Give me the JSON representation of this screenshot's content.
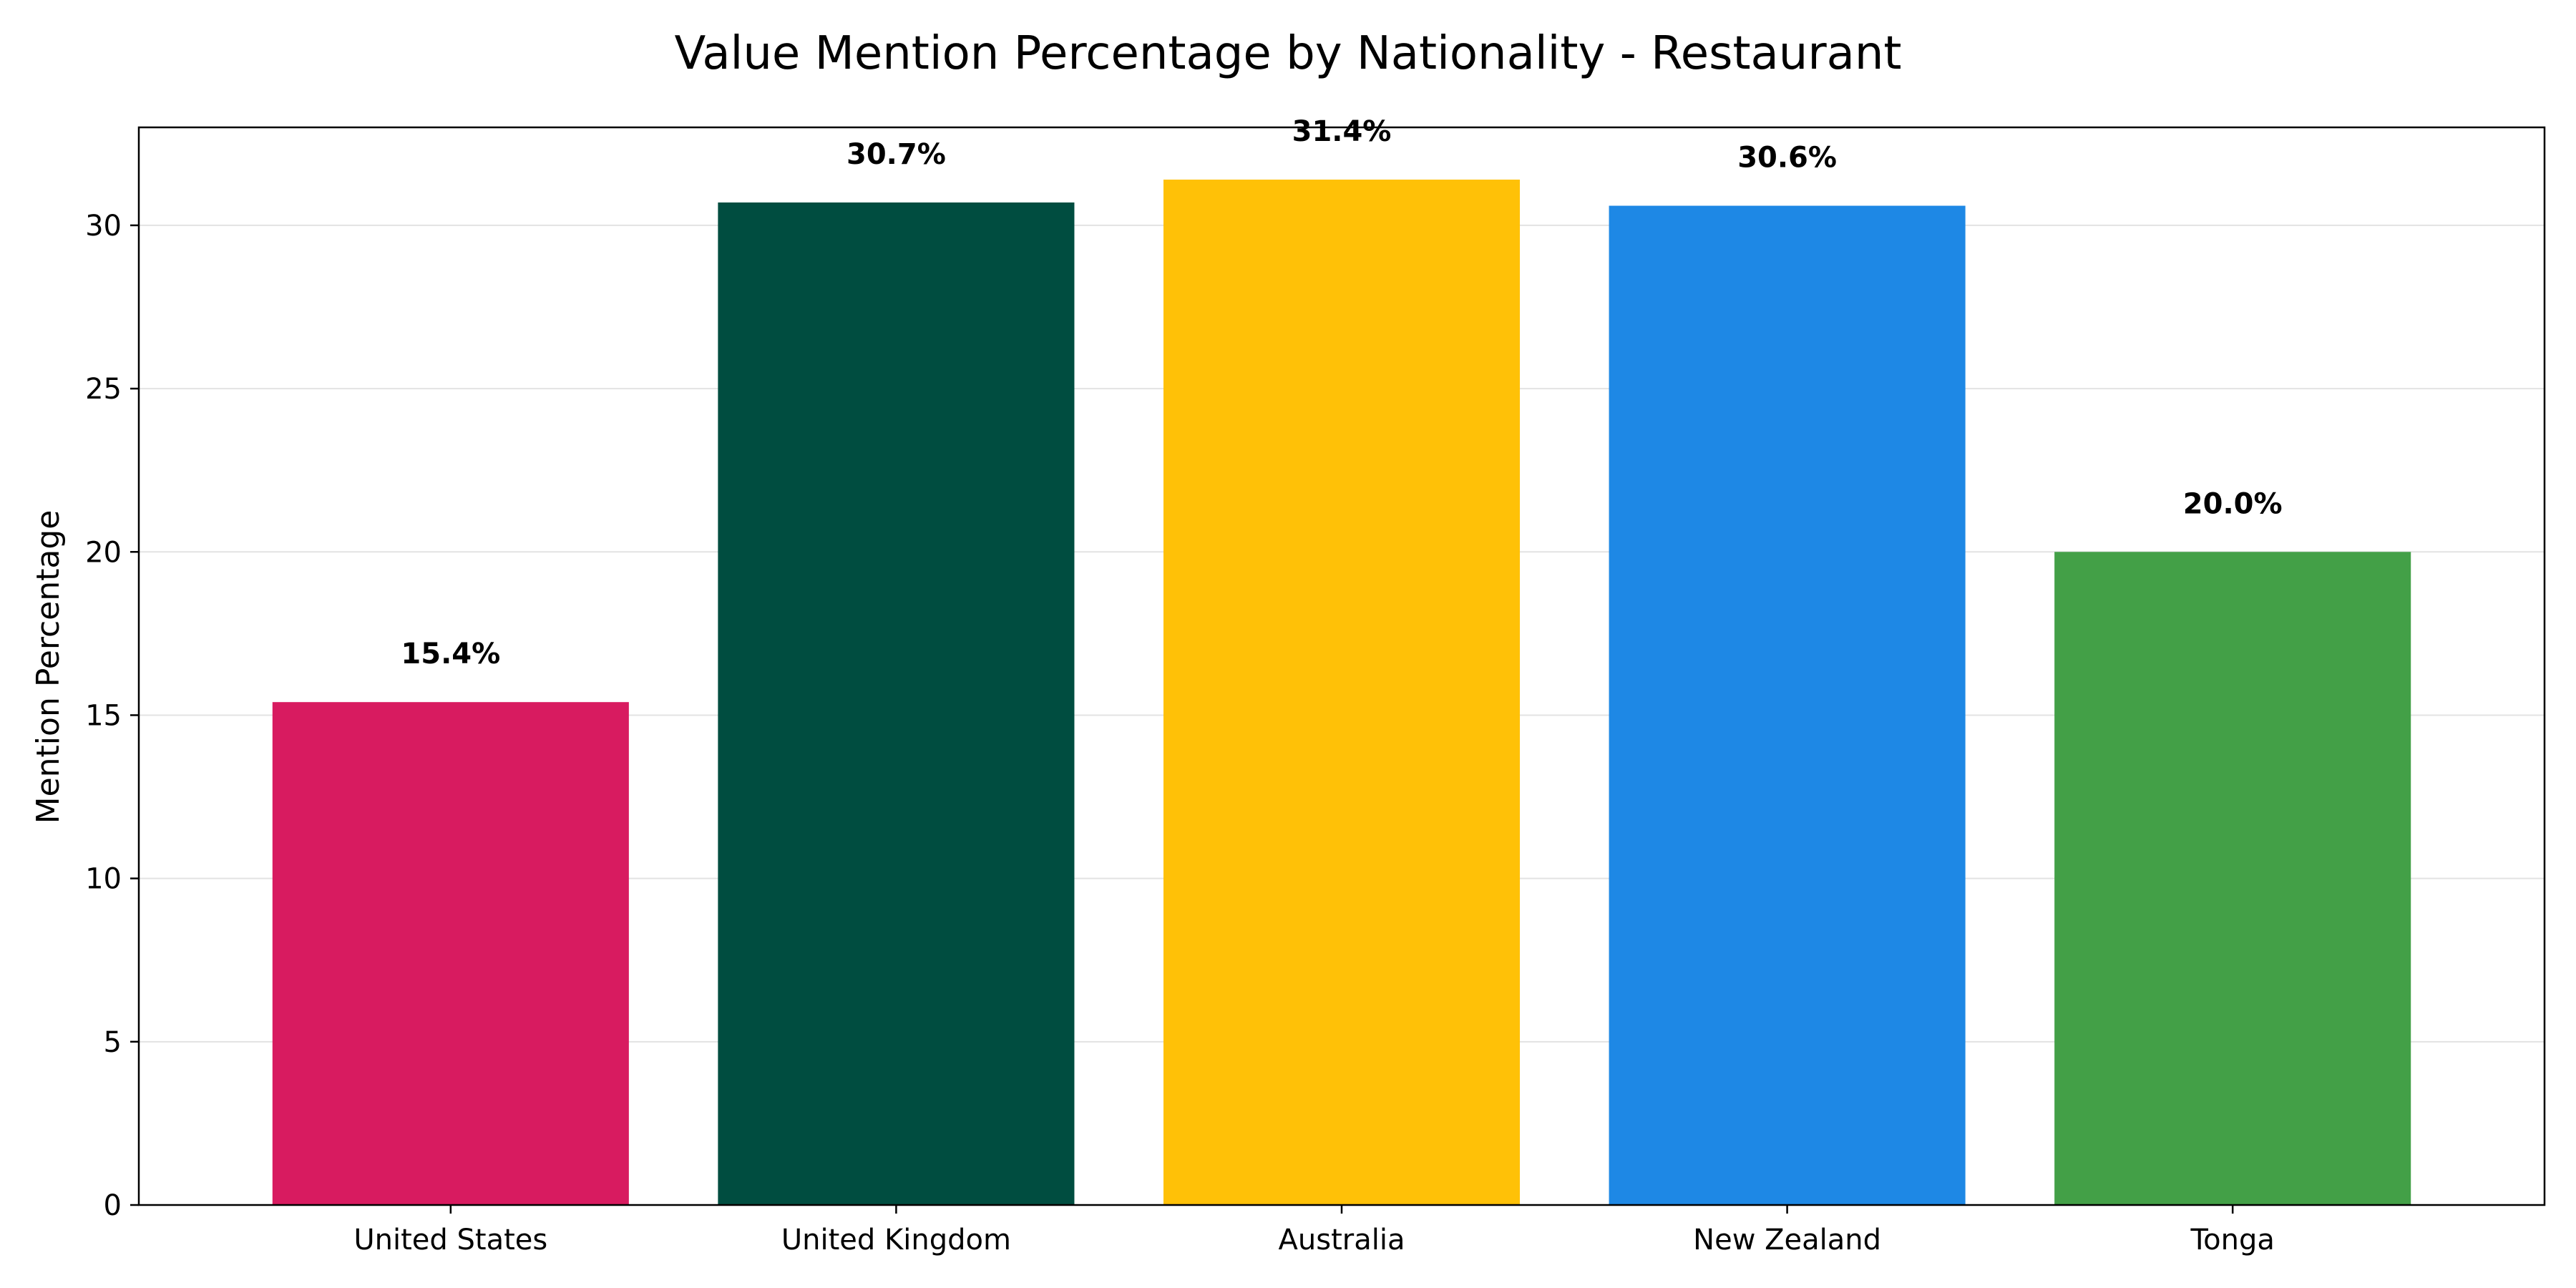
{
  "chart_data": {
    "type": "bar",
    "title": "Value Mention Percentage by Nationality - Restaurant",
    "xlabel": "",
    "ylabel": "Mention Percentage",
    "categories": [
      "United States",
      "United Kingdom",
      "Australia",
      "New Zealand",
      "Tonga"
    ],
    "values": [
      15.4,
      30.7,
      31.4,
      30.6,
      20.0
    ],
    "data_labels": [
      "15.4%",
      "30.7%",
      "31.4%",
      "30.6%",
      "20.0%"
    ],
    "colors": [
      "#D81B60",
      "#004D40",
      "#FFC107",
      "#1E88E5",
      "#43A047"
    ],
    "ylim": [
      0,
      33
    ],
    "yticks": [
      0,
      5,
      10,
      15,
      20,
      25,
      30
    ],
    "grid": true,
    "legend": "none"
  }
}
